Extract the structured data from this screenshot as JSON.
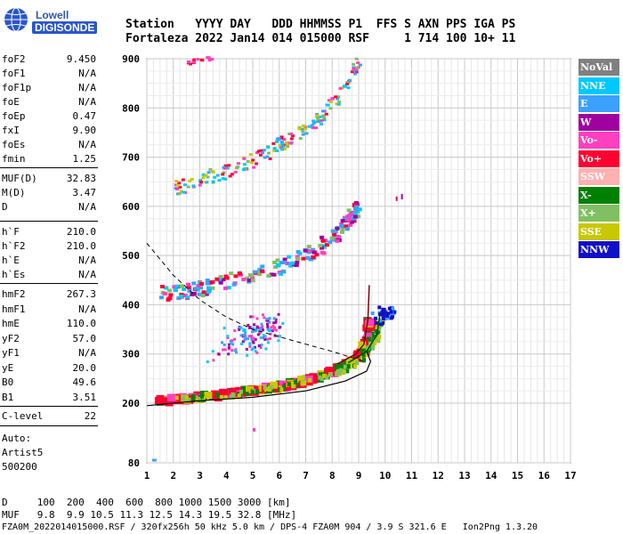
{
  "logo": {
    "line1": "Lowell",
    "line2": "DIGISONDE"
  },
  "header": {
    "row1": "Station   YYYY DAY   DDD HHMMSS P1  FFS S AXN PPS IGA PS",
    "row2": "Fortaleza 2022 Jan14 014 015000 RSF     1 714 100 10+ 11"
  },
  "params_group1": [
    {
      "name": "foF2",
      "value": "9.450"
    },
    {
      "name": "foF1",
      "value": "N/A"
    },
    {
      "name": "foF1p",
      "value": "N/A"
    },
    {
      "name": "foE",
      "value": "N/A"
    },
    {
      "name": "foEp",
      "value": "0.47"
    },
    {
      "name": "fxI",
      "value": "9.90"
    },
    {
      "name": "foEs",
      "value": "N/A"
    },
    {
      "name": "fmin",
      "value": "1.25"
    }
  ],
  "params_group2": [
    {
      "name": "MUF(D)",
      "value": "32.83"
    },
    {
      "name": "M(D)",
      "value": "3.47"
    },
    {
      "name": "D",
      "value": "N/A"
    }
  ],
  "params_group3": [
    {
      "name": "h`F",
      "value": "210.0"
    },
    {
      "name": "h`F2",
      "value": "210.0"
    },
    {
      "name": "h`E",
      "value": "N/A"
    },
    {
      "name": "h`Es",
      "value": "N/A"
    }
  ],
  "params_group4": [
    {
      "name": "hmF2",
      "value": "267.3"
    },
    {
      "name": "hmF1",
      "value": "N/A"
    },
    {
      "name": "hmE",
      "value": "110.0"
    },
    {
      "name": "yF2",
      "value": "57.0"
    },
    {
      "name": "yF1",
      "value": "N/A"
    },
    {
      "name": "yE",
      "value": "20.0"
    },
    {
      "name": "B0",
      "value": "49.6"
    },
    {
      "name": "B1",
      "value": "3.51"
    }
  ],
  "clevel": {
    "name": "C-level",
    "value": "22"
  },
  "auto": {
    "line1": "Auto:",
    "line2": "Artist5",
    "line3": "500200"
  },
  "legend": [
    {
      "label": "NoVal",
      "color": "#808080"
    },
    {
      "label": "NNE",
      "color": "#00c8ff"
    },
    {
      "label": "E",
      "color": "#3ca0ff"
    },
    {
      "label": "W",
      "color": "#a000a0"
    },
    {
      "label": "Vo-",
      "color": "#ff40c0"
    },
    {
      "label": "Vo+",
      "color": "#ff0030"
    },
    {
      "label": "SSW",
      "color": "#ffb0b0"
    },
    {
      "label": "X-",
      "color": "#008000"
    },
    {
      "label": "X+",
      "color": "#80c060"
    },
    {
      "label": "SSE",
      "color": "#c8c800"
    },
    {
      "label": "NNW",
      "color": "#1010c8"
    }
  ],
  "chart_data": {
    "type": "scatter",
    "xlim": [
      1,
      17
    ],
    "ylim": [
      80,
      900
    ],
    "x_ticks": [
      "1",
      "2",
      "3",
      "4",
      "5",
      "6",
      "7",
      "8",
      "9",
      "10",
      "11",
      "12",
      "13",
      "14",
      "15",
      "16",
      "17"
    ],
    "y_ticks": [
      "80",
      "200",
      "300",
      "400",
      "500",
      "600",
      "700",
      "800",
      "900"
    ],
    "grid": true,
    "traces": [
      {
        "kind": "O-trace 1st hop",
        "points": [
          [
            1.3,
            212
          ],
          [
            2,
            215
          ],
          [
            3,
            220
          ],
          [
            4,
            226
          ],
          [
            5,
            233
          ],
          [
            6,
            242
          ],
          [
            7,
            255
          ],
          [
            8,
            272
          ],
          [
            8.6,
            290
          ],
          [
            9.0,
            310
          ],
          [
            9.2,
            340
          ],
          [
            9.3,
            380
          ]
        ]
      },
      {
        "kind": "O-trace 2nd hop",
        "points": [
          [
            1.5,
            425
          ],
          [
            2.5,
            432
          ],
          [
            3.5,
            442
          ],
          [
            4.5,
            456
          ],
          [
            5.5,
            472
          ],
          [
            6.5,
            492
          ],
          [
            7.3,
            515
          ],
          [
            8.0,
            540
          ],
          [
            8.5,
            570
          ],
          [
            8.9,
            600
          ]
        ]
      },
      {
        "kind": "O-trace 3rd hop",
        "points": [
          [
            2.0,
            640
          ],
          [
            3.0,
            655
          ],
          [
            4.0,
            675
          ],
          [
            5.0,
            698
          ],
          [
            6.0,
            728
          ],
          [
            7.0,
            760
          ],
          [
            7.8,
            800
          ],
          [
            8.5,
            850
          ],
          [
            9.0,
            900
          ]
        ]
      },
      {
        "kind": "O-trace 4th hop",
        "points": [
          [
            2.5,
            895
          ],
          [
            3.5,
            905
          ]
        ]
      },
      {
        "kind": "X-trace 1st hop",
        "points": [
          [
            2,
            212
          ],
          [
            4,
            220
          ],
          [
            6,
            236
          ],
          [
            8,
            262
          ],
          [
            9,
            290
          ],
          [
            9.6,
            330
          ],
          [
            9.8,
            380
          ]
        ]
      },
      {
        "kind": "scatter cluster",
        "points": [
          [
            4.5,
            330
          ],
          [
            5.0,
            340
          ],
          [
            5.3,
            350
          ],
          [
            5.6,
            360
          ],
          [
            3.5,
            300
          ]
        ]
      },
      {
        "kind": "NNW cluster",
        "points": [
          [
            9.6,
            370
          ],
          [
            10.0,
            380
          ],
          [
            10.3,
            395
          ],
          [
            9.4,
            390
          ]
        ]
      }
    ],
    "profile_solid": [
      [
        1,
        195
      ],
      [
        3,
        205
      ],
      [
        5,
        212
      ],
      [
        7,
        225
      ],
      [
        8.5,
        245
      ],
      [
        9.3,
        265
      ],
      [
        9.45,
        285
      ],
      [
        9.3,
        305
      ]
    ],
    "profile_dashed": [
      [
        1,
        525
      ],
      [
        2,
        460
      ],
      [
        3,
        410
      ],
      [
        4,
        375
      ],
      [
        5,
        350
      ],
      [
        6,
        335
      ],
      [
        7,
        320
      ],
      [
        8,
        305
      ],
      [
        9.2,
        285
      ]
    ]
  },
  "footer": {
    "line1": "D     100  200  400  600  800 1000 1500 3000 [km]",
    "line2": "MUF   9.8  9.9 10.5 11.3 12.5 14.3 19.5 32.8 [MHz]",
    "line3": "FZA0M_2022014015000.RSF / 320fx256h 50 kHz 5.0 km / DPS-4 FZA0M 904 / 3.9 S 321.6 E   Ion2Png 1.3.20"
  }
}
